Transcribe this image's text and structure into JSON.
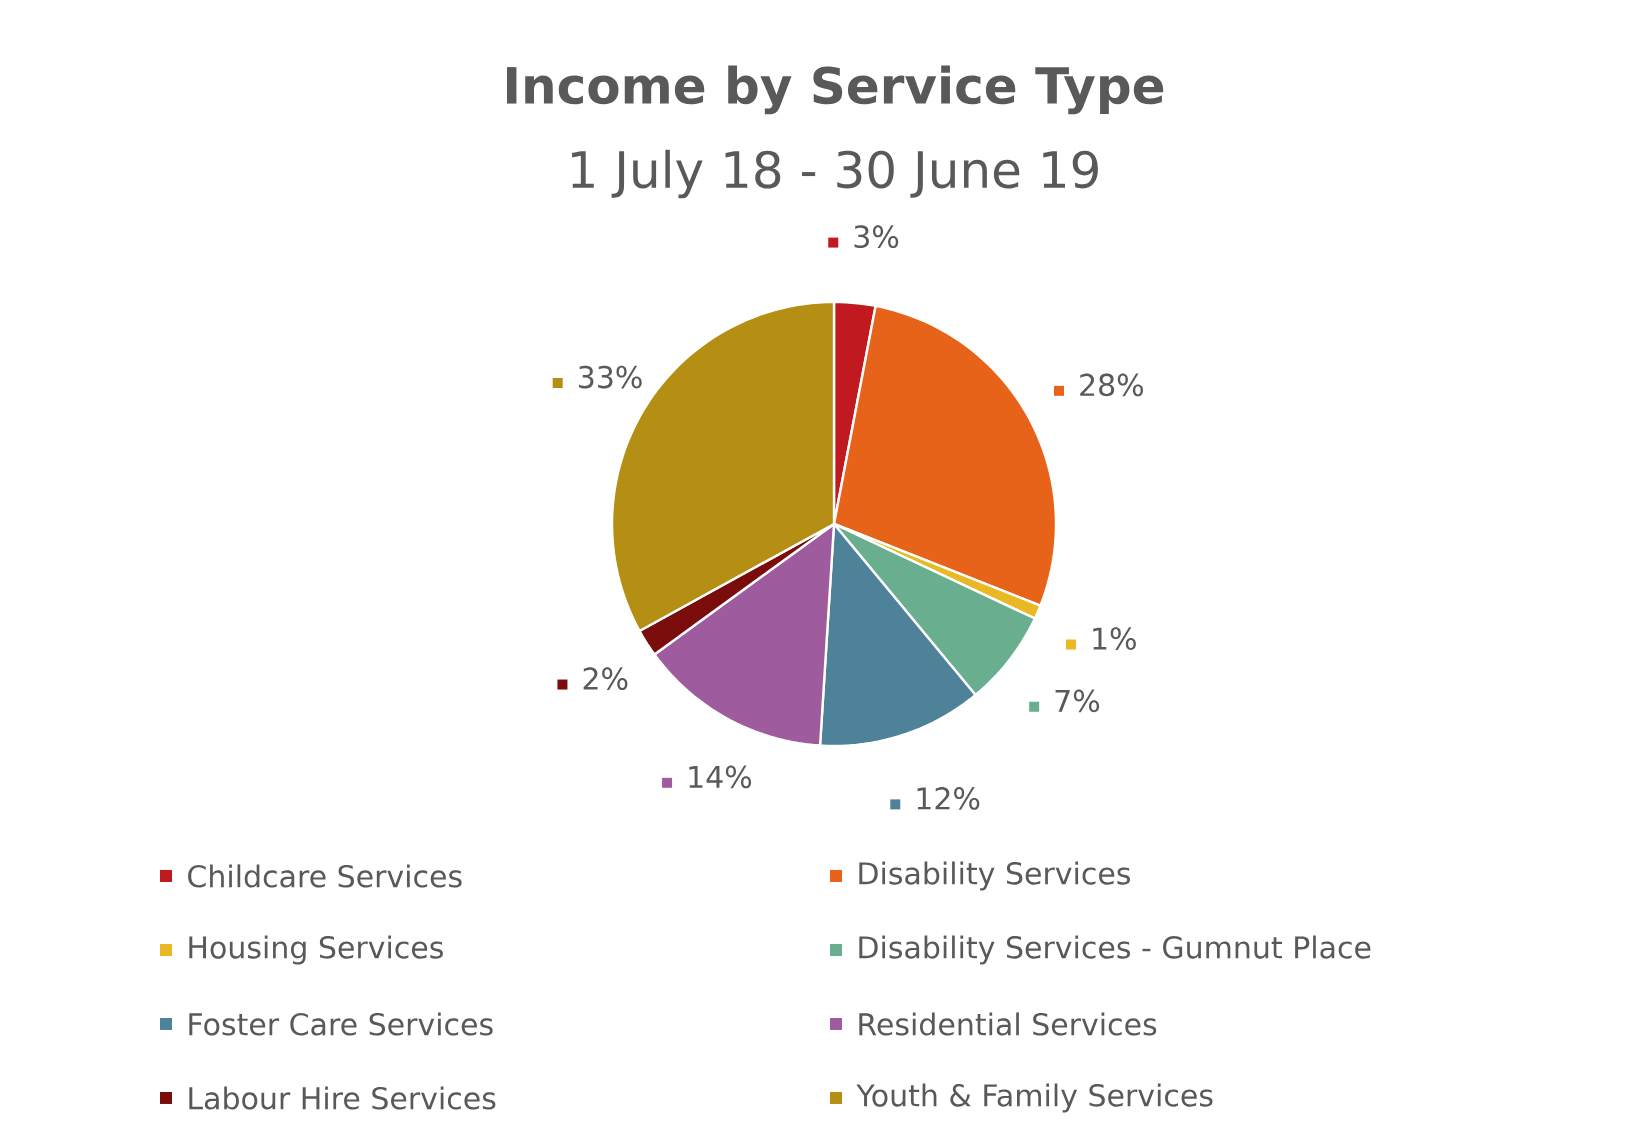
{
  "chart_data": {
    "type": "pie",
    "title": "Income by Service Type",
    "subtitle": "1 July 18 - 30 June 19",
    "categories": [
      "Childcare Services",
      "Disability Services",
      "Housing Services",
      "Disability Services - Gumnut Place",
      "Foster Care Services",
      "Residential Services",
      "Labour Hire Services",
      "Youth & Family Services"
    ],
    "values": [
      3,
      28,
      1,
      7,
      12,
      14,
      2,
      33
    ],
    "value_labels": [
      "3%",
      "28%",
      "1%",
      "7%",
      "12%",
      "14%",
      "2%",
      "33%"
    ],
    "colors": [
      "#c0191f",
      "#e8631a",
      "#e8b825",
      "#6aae90",
      "#4e8299",
      "#9e5b9e",
      "#7a0c0c",
      "#b58f14"
    ],
    "legend": "bottom"
  }
}
